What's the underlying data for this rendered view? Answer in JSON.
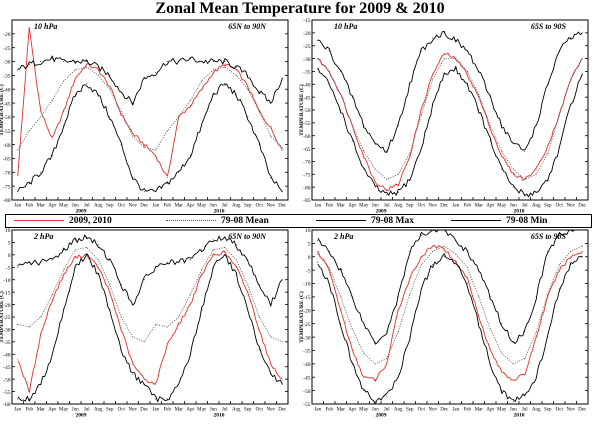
{
  "title": "Zonal Mean Temperature for 2009 & 2010",
  "legend": [
    {
      "label": "2009, 2010",
      "color": "#e0302c",
      "style": "solid"
    },
    {
      "label": "79-08 Mean",
      "color": "#555555",
      "style": "dotted"
    },
    {
      "label": "79-08 Max",
      "color": "#000000",
      "style": "solid"
    },
    {
      "label": "79-08 Min",
      "color": "#000000",
      "style": "solid"
    }
  ],
  "chart_data": [
    {
      "type": "line",
      "level_label": "10 hPa",
      "region_label": "65N to 90N",
      "ylabel": "TEMPERATURE (C)",
      "ylim": [
        -80,
        -15
      ],
      "yticks": [
        -80,
        -75,
        -70,
        -65,
        -60,
        -55,
        -50,
        -45,
        -40,
        -35,
        -30,
        -25,
        -20
      ],
      "months": [
        "Jan",
        "Feb",
        "Mar",
        "Apr",
        "May",
        "Jun",
        "Jul",
        "Aug",
        "Sep",
        "Oct",
        "Nov",
        "Dec",
        "Jan",
        "Feb",
        "Mar",
        "Apr",
        "May",
        "Jun",
        "Jul",
        "Aug",
        "Sep",
        "Oct",
        "Nov",
        "Dec"
      ],
      "years": [
        "2009",
        "2010"
      ],
      "series": [
        {
          "name": "2009, 2010",
          "values": [
            -71,
            -18,
            -48,
            -58,
            -48,
            -36,
            -31,
            -33,
            -39,
            -49,
            -56,
            -60,
            -64,
            -72,
            -50,
            -46,
            -40,
            -34,
            -31,
            -33,
            -39,
            -48,
            -54,
            -62
          ]
        },
        {
          "name": "79-08 Mean",
          "values": [
            -62,
            -55,
            -50,
            -44,
            -37,
            -33,
            -32,
            -35,
            -40,
            -48,
            -57,
            -61,
            -62,
            -55,
            -50,
            -44,
            -37,
            -33,
            -32,
            -35,
            -40,
            -48,
            -57,
            -61
          ]
        },
        {
          "name": "79-08 Max",
          "values": [
            -33,
            -31,
            -30,
            -29,
            -30,
            -30,
            -30,
            -32,
            -35,
            -41,
            -45,
            -36,
            -34,
            -30,
            -30,
            -29,
            -30,
            -30,
            -30,
            -32,
            -35,
            -41,
            -45,
            -36
          ]
        },
        {
          "name": "79-08 Min",
          "values": [
            -77,
            -74,
            -70,
            -64,
            -53,
            -42,
            -38,
            -42,
            -50,
            -60,
            -72,
            -77,
            -77,
            -74,
            -70,
            -64,
            -53,
            -42,
            -38,
            -42,
            -50,
            -60,
            -72,
            -77
          ]
        }
      ]
    },
    {
      "type": "line",
      "level_label": "10 hPa",
      "region_label": "65S to 90S",
      "ylabel": "TEMPERATURE (C)",
      "ylim": [
        -85,
        -15
      ],
      "yticks": [
        -85,
        -80,
        -75,
        -70,
        -65,
        -60,
        -55,
        -50,
        -45,
        -40,
        -35,
        -30,
        -25,
        -20,
        -15
      ],
      "months": [
        "Jan",
        "Feb",
        "Mar",
        "Apr",
        "May",
        "Jun",
        "Jul",
        "Aug",
        "Sep",
        "Oct",
        "Nov",
        "Dec",
        "Jan",
        "Feb",
        "Mar",
        "Apr",
        "May",
        "Jun",
        "Jul",
        "Aug",
        "Sep",
        "Oct",
        "Nov",
        "Dec"
      ],
      "years": [
        "2009",
        "2010"
      ],
      "series": [
        {
          "name": "2009, 2010",
          "values": [
            -30,
            -35,
            -44,
            -56,
            -68,
            -78,
            -81,
            -79,
            -68,
            -50,
            -36,
            -28,
            -30,
            -36,
            -45,
            -57,
            -68,
            -75,
            -77,
            -73,
            -64,
            -52,
            -38,
            -30
          ]
        },
        {
          "name": "79-08 Mean",
          "values": [
            -30,
            -35,
            -44,
            -56,
            -66,
            -73,
            -77,
            -75,
            -67,
            -52,
            -38,
            -30,
            -30,
            -35,
            -44,
            -56,
            -66,
            -73,
            -77,
            -75,
            -67,
            -52,
            -38,
            -30
          ]
        },
        {
          "name": "79-08 Max",
          "values": [
            -23,
            -27,
            -35,
            -45,
            -56,
            -63,
            -66,
            -56,
            -40,
            -27,
            -22,
            -20,
            -23,
            -27,
            -35,
            -45,
            -56,
            -63,
            -66,
            -56,
            -40,
            -27,
            -22,
            -20
          ]
        },
        {
          "name": "79-08 Min",
          "values": [
            -34,
            -40,
            -50,
            -62,
            -73,
            -80,
            -83,
            -82,
            -77,
            -65,
            -48,
            -36,
            -34,
            -40,
            -50,
            -62,
            -73,
            -80,
            -83,
            -82,
            -77,
            -65,
            -48,
            -36
          ]
        }
      ]
    },
    {
      "type": "line",
      "level_label": "2 hPa",
      "region_label": "65N to 90N",
      "ylabel": "TEMPERATURE (C)",
      "ylim": [
        -60,
        10
      ],
      "yticks": [
        -60,
        -55,
        -50,
        -45,
        -40,
        -35,
        -30,
        -25,
        -20,
        -15,
        -10,
        -5,
        0,
        5,
        10
      ],
      "months": [
        "Jan",
        "Feb",
        "Mar",
        "Apr",
        "May",
        "Jun",
        "Jul",
        "Aug",
        "Sep",
        "Oct",
        "Nov",
        "Dec",
        "Jan",
        "Feb",
        "Mar",
        "Apr",
        "May",
        "Jun",
        "Jul",
        "Aug",
        "Sep",
        "Oct",
        "Nov",
        "Dec"
      ],
      "years": [
        "2009",
        "2010"
      ],
      "series": [
        {
          "name": "2009, 2010",
          "values": [
            -42,
            -55,
            -32,
            -18,
            -8,
            -1,
            0,
            -5,
            -15,
            -30,
            -44,
            -50,
            -52,
            -36,
            -28,
            -20,
            -8,
            0,
            1,
            -5,
            -15,
            -30,
            -44,
            -50
          ]
        },
        {
          "name": "79-08 Mean",
          "values": [
            -28,
            -29,
            -25,
            -16,
            -6,
            2,
            3,
            -2,
            -12,
            -25,
            -33,
            -35,
            -28,
            -29,
            -25,
            -16,
            -6,
            2,
            3,
            -2,
            -12,
            -25,
            -33,
            -35
          ]
        },
        {
          "name": "79-08 Max",
          "values": [
            -5,
            -3,
            -3,
            -2,
            2,
            6,
            7,
            4,
            -2,
            -12,
            -20,
            -10,
            -5,
            -3,
            -3,
            -2,
            2,
            6,
            7,
            4,
            -2,
            -12,
            -20,
            -10
          ]
        },
        {
          "name": "79-08 Min",
          "values": [
            -58,
            -58,
            -52,
            -40,
            -22,
            -5,
            0,
            -8,
            -22,
            -38,
            -48,
            -52,
            -58,
            -58,
            -52,
            -40,
            -22,
            -5,
            0,
            -8,
            -22,
            -38,
            -48,
            -52
          ]
        }
      ]
    },
    {
      "type": "line",
      "level_label": "2 hPa",
      "region_label": "65S to 90S",
      "ylabel": "TEMPERATURE (C)",
      "ylim": [
        -55,
        10
      ],
      "yticks": [
        -55,
        -50,
        -45,
        -40,
        -35,
        -30,
        -25,
        -20,
        -15,
        -10,
        -5,
        0,
        5,
        10
      ],
      "months": [
        "Jan",
        "Feb",
        "Mar",
        "Apr",
        "May",
        "Jun",
        "Jul",
        "Aug",
        "Sep",
        "Oct",
        "Nov",
        "Dec",
        "Jan",
        "Feb",
        "Mar",
        "Apr",
        "May",
        "Jun",
        "Jul",
        "Aug",
        "Sep",
        "Oct",
        "Nov",
        "Dec"
      ],
      "years": [
        "2009",
        "2010"
      ],
      "series": [
        {
          "name": "2009, 2010",
          "values": [
            2,
            -5,
            -20,
            -35,
            -45,
            -46,
            -40,
            -20,
            -8,
            0,
            4,
            3,
            -2,
            -8,
            -22,
            -35,
            -43,
            -46,
            -44,
            -30,
            -15,
            -5,
            0,
            2
          ]
        },
        {
          "name": "79-08 Mean",
          "values": [
            1,
            -4,
            -15,
            -27,
            -36,
            -40,
            -38,
            -28,
            -14,
            -3,
            2,
            4,
            1,
            -4,
            -15,
            -27,
            -36,
            -40,
            -38,
            -28,
            -14,
            -3,
            2,
            4
          ]
        },
        {
          "name": "79-08 Max",
          "values": [
            6,
            2,
            -5,
            -15,
            -25,
            -32,
            -28,
            -15,
            2,
            8,
            10,
            10,
            6,
            2,
            -5,
            -15,
            -25,
            -32,
            -28,
            -15,
            2,
            8,
            10,
            10
          ]
        },
        {
          "name": "79-08 Min",
          "values": [
            -2,
            -10,
            -25,
            -40,
            -50,
            -54,
            -52,
            -45,
            -30,
            -12,
            -3,
            0,
            -2,
            -10,
            -25,
            -40,
            -50,
            -54,
            -52,
            -45,
            -30,
            -12,
            -3,
            0
          ]
        }
      ]
    }
  ]
}
